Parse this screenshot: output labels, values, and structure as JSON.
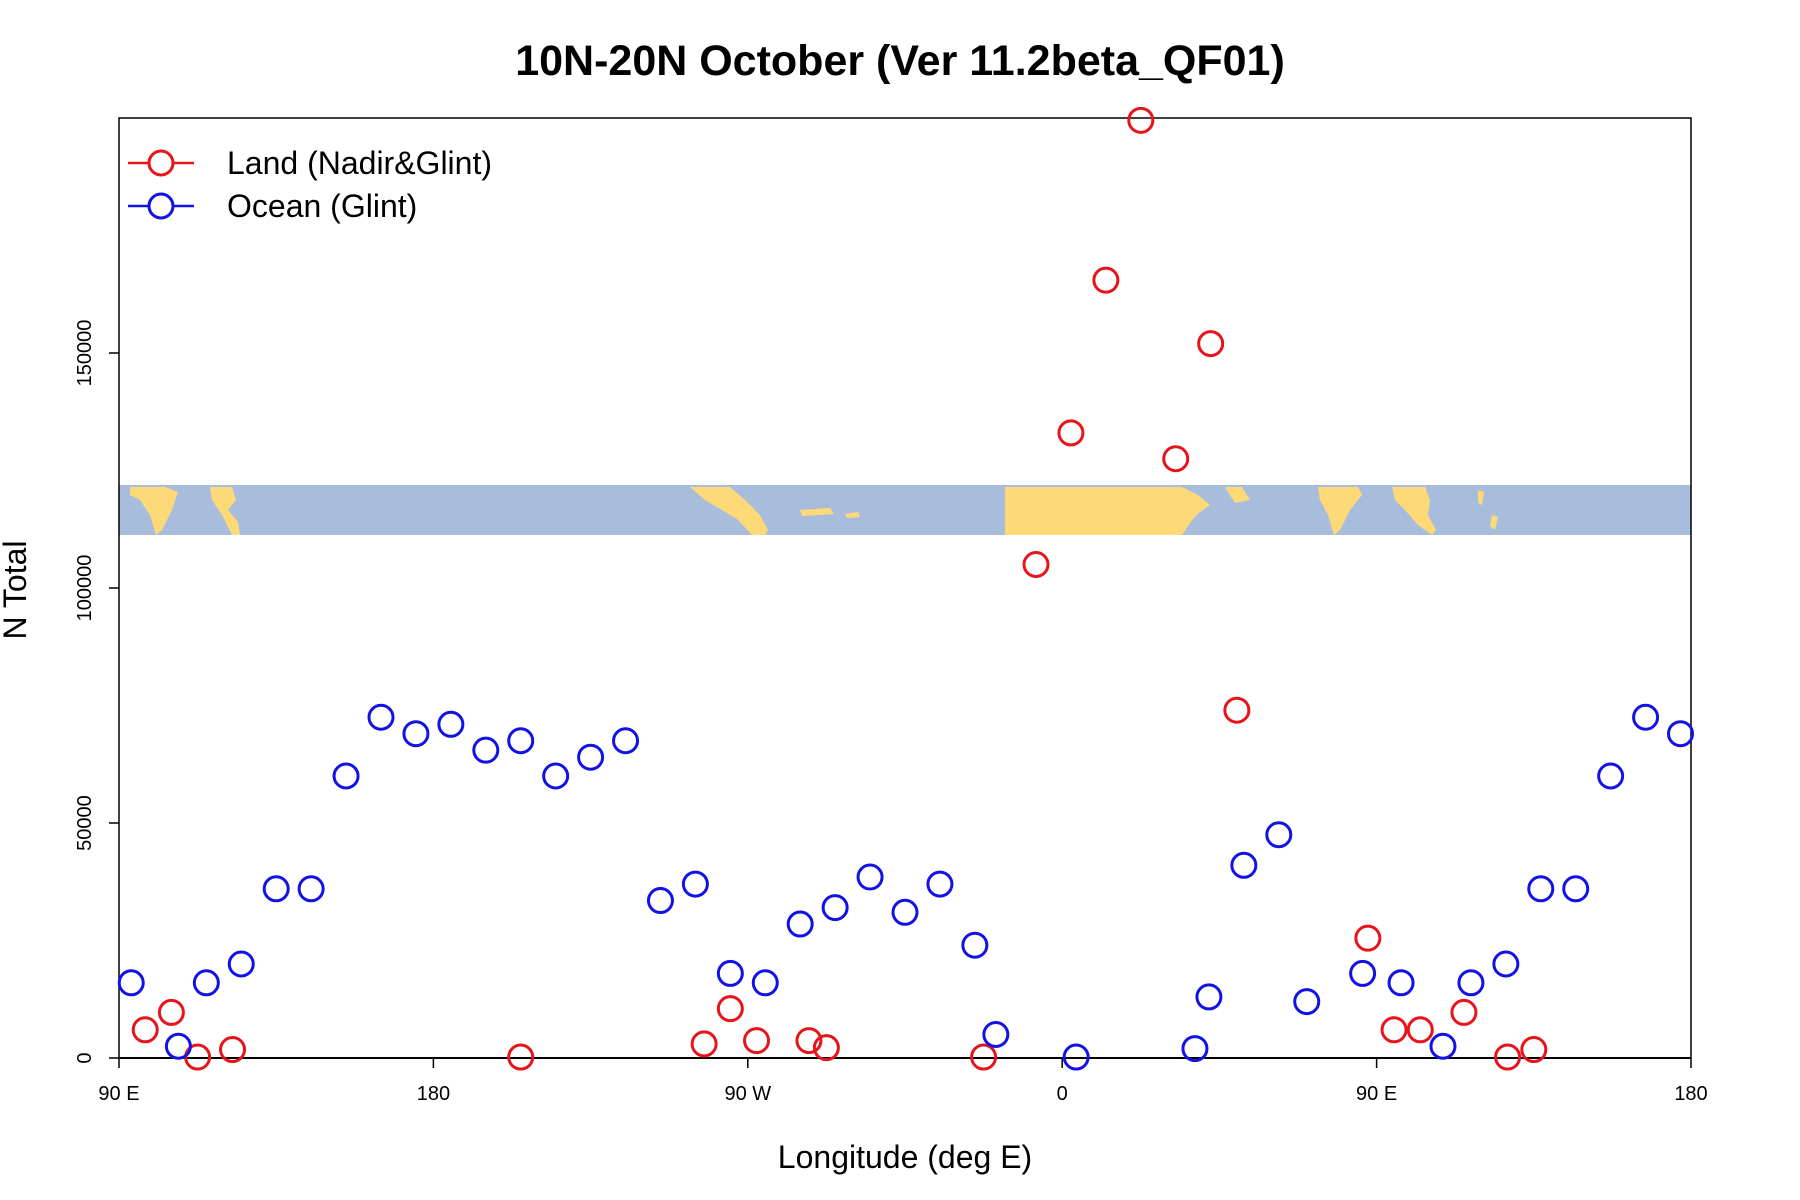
{
  "chart_data": {
    "type": "scatter",
    "title": "10N-20N October (Ver 11.2beta_QF01)",
    "xlabel": "Longitude (deg E)",
    "ylabel": "N Total",
    "xlim": [
      90,
      540
    ],
    "ylim": [
      0,
      200000
    ],
    "x_ticks": [
      {
        "value": 90,
        "label": "90 E"
      },
      {
        "value": 180,
        "label": "180"
      },
      {
        "value": 270,
        "label": "90 W"
      },
      {
        "value": 360,
        "label": "0"
      },
      {
        "value": 450,
        "label": "90 E"
      },
      {
        "value": 540,
        "label": "180"
      }
    ],
    "y_ticks": [
      {
        "value": 0,
        "label": "0"
      },
      {
        "value": 50000,
        "label": "50000"
      },
      {
        "value": 100000,
        "label": "100000"
      },
      {
        "value": 150000,
        "label": "150000"
      }
    ],
    "legend_position": "top-left",
    "colors": {
      "land": "#e8141b",
      "ocean": "#1212e6",
      "map_ocean": "#a8bddc",
      "map_land": "#fdd978"
    },
    "series": [
      {
        "name": "Land (Nadir&Glint)",
        "color": "#e8141b",
        "points": [
          [
            97.5,
            6000
          ],
          [
            105,
            9700
          ],
          [
            112.5,
            200
          ],
          [
            122.5,
            1800
          ],
          [
            205,
            200
          ],
          [
            257.5,
            3000
          ],
          [
            265,
            10500
          ],
          [
            272.5,
            3700
          ],
          [
            287.5,
            3700
          ],
          [
            292.5,
            2200
          ],
          [
            337.5,
            200
          ],
          [
            352.5,
            105000
          ],
          [
            362.5,
            133000
          ],
          [
            372.5,
            165500
          ],
          [
            382.5,
            199500
          ],
          [
            392.5,
            127500
          ],
          [
            402.5,
            152000
          ],
          [
            410,
            74000
          ],
          [
            447.5,
            25500
          ],
          [
            455,
            6000
          ],
          [
            462.5,
            6000
          ],
          [
            475,
            9700
          ],
          [
            487.5,
            200
          ],
          [
            495,
            1800
          ]
        ]
      },
      {
        "name": "Ocean (Glint)",
        "color": "#1212e6",
        "points": [
          [
            93.5,
            16000
          ],
          [
            107,
            2500
          ],
          [
            115,
            16000
          ],
          [
            125,
            20000
          ],
          [
            135,
            36000
          ],
          [
            145,
            36000
          ],
          [
            155,
            60000
          ],
          [
            165,
            72500
          ],
          [
            175,
            69000
          ],
          [
            185,
            71000
          ],
          [
            195,
            65500
          ],
          [
            205,
            67500
          ],
          [
            215,
            60000
          ],
          [
            225,
            64000
          ],
          [
            235,
            67500
          ],
          [
            245,
            33500
          ],
          [
            255,
            37000
          ],
          [
            265,
            18000
          ],
          [
            275,
            16000
          ],
          [
            285,
            28500
          ],
          [
            295,
            32000
          ],
          [
            305,
            38500
          ],
          [
            315,
            31000
          ],
          [
            325,
            37000
          ],
          [
            335,
            24000
          ],
          [
            341,
            5000
          ],
          [
            364,
            200
          ],
          [
            398,
            2000
          ],
          [
            402,
            13000
          ],
          [
            412,
            41000
          ],
          [
            422,
            47500
          ],
          [
            430,
            12000
          ],
          [
            446,
            18000
          ],
          [
            457,
            16000
          ],
          [
            469,
            2500
          ],
          [
            477,
            16000
          ],
          [
            487,
            20000
          ],
          [
            497,
            36000
          ],
          [
            507,
            36000
          ],
          [
            517,
            60000
          ],
          [
            527,
            72500
          ],
          [
            537,
            69000
          ]
        ]
      }
    ]
  }
}
